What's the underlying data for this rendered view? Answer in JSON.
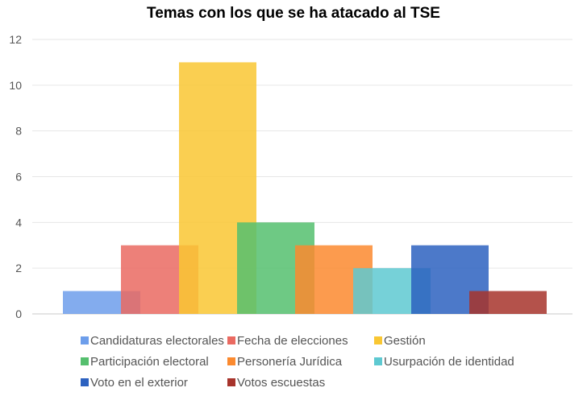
{
  "chart_data": {
    "type": "bar",
    "title": "Temas con los que se ha atacado al TSE",
    "xlabel": "",
    "ylabel": "",
    "ylim": [
      0,
      12
    ],
    "yticks": [
      0,
      2,
      4,
      6,
      8,
      10,
      12
    ],
    "grid": true,
    "legend_position": "bottom",
    "series": [
      {
        "name": "Candidaturas electorales",
        "value": 1,
        "color": "#6d9eeb"
      },
      {
        "name": "Fecha de elecciones",
        "value": 3,
        "color": "#ea6a61"
      },
      {
        "name": "Gestión",
        "value": 11,
        "color": "#f9c733"
      },
      {
        "name": "Participación electoral",
        "value": 4,
        "color": "#55bf6e"
      },
      {
        "name": "Personería Jurídica",
        "value": 3,
        "color": "#fb8a2f"
      },
      {
        "name": "Usurpación de identidad",
        "value": 2,
        "color": "#5ec9d1"
      },
      {
        "name": "Voto en el exterior",
        "value": 3,
        "color": "#2d62c0"
      },
      {
        "name": "Votos escuestas",
        "value": 1,
        "color": "#a7342c"
      }
    ]
  }
}
